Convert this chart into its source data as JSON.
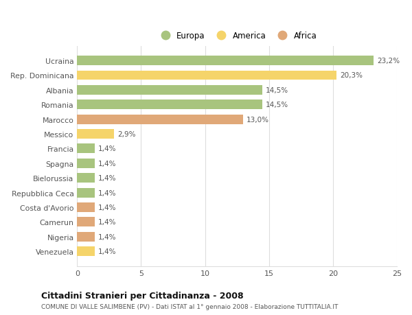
{
  "categories": [
    "Ucraina",
    "Rep. Dominicana",
    "Albania",
    "Romania",
    "Marocco",
    "Messico",
    "Francia",
    "Spagna",
    "Bielorussia",
    "Repubblica Ceca",
    "Costa d'Avorio",
    "Camerun",
    "Nigeria",
    "Venezuela"
  ],
  "values": [
    23.2,
    20.3,
    14.5,
    14.5,
    13.0,
    2.9,
    1.4,
    1.4,
    1.4,
    1.4,
    1.4,
    1.4,
    1.4,
    1.4
  ],
  "labels": [
    "23,2%",
    "20,3%",
    "14,5%",
    "14,5%",
    "13,0%",
    "2,9%",
    "1,4%",
    "1,4%",
    "1,4%",
    "1,4%",
    "1,4%",
    "1,4%",
    "1,4%",
    "1,4%"
  ],
  "colors": [
    "#a8c47e",
    "#f5d46a",
    "#a8c47e",
    "#a8c47e",
    "#e0a878",
    "#f5d46a",
    "#a8c47e",
    "#a8c47e",
    "#a8c47e",
    "#a8c47e",
    "#e0a878",
    "#e0a878",
    "#e0a878",
    "#f5d46a"
  ],
  "legend_labels": [
    "Europa",
    "America",
    "Africa"
  ],
  "legend_colors": [
    "#a8c47e",
    "#f5d46a",
    "#e0a878"
  ],
  "xlim": [
    0,
    25
  ],
  "xticks": [
    0,
    5,
    10,
    15,
    20,
    25
  ],
  "title": "Cittadini Stranieri per Cittadinanza - 2008",
  "subtitle": "COMUNE DI VALLE SALIMBENE (PV) - Dati ISTAT al 1° gennaio 2008 - Elaborazione TUTTITALIA.IT",
  "background_color": "#ffffff",
  "grid_color": "#dddddd",
  "bar_height": 0.65
}
